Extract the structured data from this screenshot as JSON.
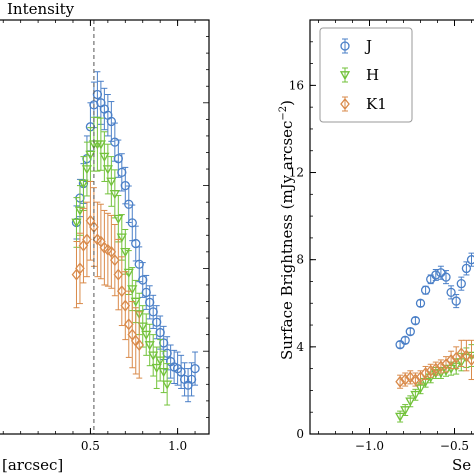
{
  "chart_data": [
    {
      "type": "scatter",
      "panel": "left",
      "ylabel": "Intensity",
      "xlabel": "[arcsec]",
      "xlim": [
        -0.03,
        1.18
      ],
      "ylim": [
        0,
        1
      ],
      "x_ticks": [
        {
          "v": 0.5,
          "label": "0.5"
        },
        {
          "v": 1.0,
          "label": "1.0"
        }
      ],
      "vline_x": 0.52,
      "colors": {
        "J": "#4a7fc7",
        "H": "#72c23a",
        "K1": "#d98a4a"
      },
      "series": [
        {
          "name": "J",
          "points": [
            [
              0.42,
              0.511,
              0.04
            ],
            [
              0.44,
              0.57,
              0.045
            ],
            [
              0.46,
              0.605,
              0.048
            ],
            [
              0.48,
              0.665,
              0.055
            ],
            [
              0.5,
              0.742,
              0.058
            ],
            [
              0.52,
              0.795,
              0.055
            ],
            [
              0.54,
              0.82,
              0.055
            ],
            [
              0.56,
              0.8,
              0.052
            ],
            [
              0.58,
              0.785,
              0.05
            ],
            [
              0.6,
              0.77,
              0.05
            ],
            [
              0.62,
              0.755,
              0.048
            ],
            [
              0.64,
              0.705,
              0.046
            ],
            [
              0.66,
              0.665,
              0.045
            ],
            [
              0.68,
              0.632,
              0.045
            ],
            [
              0.7,
              0.6,
              0.044
            ],
            [
              0.72,
              0.555,
              0.044
            ],
            [
              0.74,
              0.51,
              0.043
            ],
            [
              0.76,
              0.46,
              0.042
            ],
            [
              0.78,
              0.41,
              0.042
            ],
            [
              0.8,
              0.372,
              0.042
            ],
            [
              0.82,
              0.342,
              0.041
            ],
            [
              0.84,
              0.318,
              0.04
            ],
            [
              0.86,
              0.295,
              0.04
            ],
            [
              0.88,
              0.27,
              0.04
            ],
            [
              0.9,
              0.245,
              0.04
            ],
            [
              0.92,
              0.22,
              0.04
            ],
            [
              0.94,
              0.195,
              0.04
            ],
            [
              0.96,
              0.175,
              0.04
            ],
            [
              0.98,
              0.162,
              0.04
            ],
            [
              1.0,
              0.158,
              0.04
            ],
            [
              1.02,
              0.15,
              0.04
            ],
            [
              1.04,
              0.132,
              0.04
            ],
            [
              1.06,
              0.118,
              0.04
            ],
            [
              1.08,
              0.132,
              0.04
            ],
            [
              1.1,
              0.158,
              0.04
            ]
          ]
        },
        {
          "name": "H",
          "points": [
            [
              0.42,
              0.511,
              0.06
            ],
            [
              0.44,
              0.54,
              0.06
            ],
            [
              0.46,
              0.605,
              0.065
            ],
            [
              0.48,
              0.64,
              0.065
            ],
            [
              0.5,
              0.675,
              0.065
            ],
            [
              0.52,
              0.7,
              0.065
            ],
            [
              0.54,
              0.7,
              0.065
            ],
            [
              0.56,
              0.7,
              0.063
            ],
            [
              0.58,
              0.67,
              0.06
            ],
            [
              0.6,
              0.64,
              0.06
            ],
            [
              0.62,
              0.61,
              0.06
            ],
            [
              0.64,
              0.58,
              0.058
            ],
            [
              0.66,
              0.52,
              0.056
            ],
            [
              0.68,
              0.475,
              0.055
            ],
            [
              0.7,
              0.44,
              0.054
            ],
            [
              0.72,
              0.39,
              0.053
            ],
            [
              0.74,
              0.35,
              0.052
            ],
            [
              0.76,
              0.32,
              0.051
            ],
            [
              0.78,
              0.29,
              0.05
            ],
            [
              0.8,
              0.26,
              0.05
            ],
            [
              0.82,
              0.24,
              0.05
            ],
            [
              0.84,
              0.215,
              0.05
            ],
            [
              0.86,
              0.19,
              0.05
            ],
            [
              0.88,
              0.16,
              0.05
            ],
            [
              0.9,
              0.178,
              0.05
            ],
            [
              0.92,
              0.15,
              0.05
            ],
            [
              0.94,
              0.12,
              0.05
            ]
          ]
        },
        {
          "name": "K1",
          "points": [
            [
              0.42,
              0.385,
              0.08
            ],
            [
              0.44,
              0.4,
              0.085
            ],
            [
              0.46,
              0.455,
              0.09
            ],
            [
              0.48,
              0.47,
              0.09
            ],
            [
              0.5,
              0.515,
              0.095
            ],
            [
              0.52,
              0.5,
              0.095
            ],
            [
              0.54,
              0.47,
              0.09
            ],
            [
              0.56,
              0.465,
              0.09
            ],
            [
              0.58,
              0.45,
              0.09
            ],
            [
              0.6,
              0.445,
              0.088
            ],
            [
              0.62,
              0.44,
              0.088
            ],
            [
              0.64,
              0.42,
              0.086
            ],
            [
              0.66,
              0.385,
              0.085
            ],
            [
              0.68,
              0.345,
              0.083
            ],
            [
              0.7,
              0.31,
              0.082
            ],
            [
              0.72,
              0.265,
              0.08
            ],
            [
              0.74,
              0.24,
              0.08
            ],
            [
              0.76,
              0.225,
              0.08
            ],
            [
              0.78,
              0.215,
              0.08
            ]
          ]
        }
      ]
    },
    {
      "type": "scatter",
      "panel": "right",
      "ylabel": "Surface Brightness (mJy arcsec$^{-2}$)",
      "ylabel_main": "Surface Brightness (mJy arcsec",
      "ylabel_sup": "−2",
      "ylabel_close": ")",
      "xlabel": "Se",
      "xlim": [
        -1.35,
        -0.35
      ],
      "ylim": [
        0,
        19
      ],
      "x_ticks": [
        {
          "v": -1.0,
          "label": "−1.0"
        },
        {
          "v": -0.5,
          "label": "−0.5"
        }
      ],
      "y_ticks": [
        {
          "v": 0,
          "label": "0"
        },
        {
          "v": 4,
          "label": "4"
        },
        {
          "v": 8,
          "label": "8"
        },
        {
          "v": 12,
          "label": "12"
        },
        {
          "v": 16,
          "label": "16"
        }
      ],
      "legend": [
        {
          "name": "J",
          "marker": "circle",
          "color": "#4a7fc7"
        },
        {
          "name": "H",
          "marker": "triangle",
          "color": "#72c23a"
        },
        {
          "name": "K1",
          "marker": "diamond",
          "color": "#d98a4a"
        }
      ],
      "series": [
        {
          "name": "J",
          "points": [
            [
              -0.82,
              4.1,
              0.15
            ],
            [
              -0.79,
              4.3,
              0.15
            ],
            [
              -0.76,
              4.7,
              0.15
            ],
            [
              -0.73,
              5.2,
              0.15
            ],
            [
              -0.7,
              6.0,
              0.15
            ],
            [
              -0.67,
              6.6,
              0.18
            ],
            [
              -0.64,
              7.1,
              0.2
            ],
            [
              -0.61,
              7.3,
              0.25
            ],
            [
              -0.58,
              7.4,
              0.3
            ],
            [
              -0.55,
              7.2,
              0.3
            ],
            [
              -0.52,
              6.5,
              0.3
            ],
            [
              -0.49,
              6.1,
              0.3
            ],
            [
              -0.46,
              6.9,
              0.3
            ],
            [
              -0.43,
              7.6,
              0.3
            ],
            [
              -0.4,
              8.0,
              0.3
            ]
          ]
        },
        {
          "name": "H",
          "points": [
            [
              -0.82,
              0.8,
              0.25
            ],
            [
              -0.79,
              1.1,
              0.25
            ],
            [
              -0.76,
              1.5,
              0.25
            ],
            [
              -0.73,
              1.8,
              0.25
            ],
            [
              -0.7,
              2.1,
              0.25
            ],
            [
              -0.67,
              2.4,
              0.25
            ],
            [
              -0.64,
              2.6,
              0.25
            ],
            [
              -0.61,
              2.8,
              0.25
            ],
            [
              -0.58,
              2.8,
              0.25
            ],
            [
              -0.55,
              2.9,
              0.25
            ],
            [
              -0.52,
              3.0,
              0.3
            ],
            [
              -0.49,
              3.1,
              0.35
            ],
            [
              -0.46,
              3.3,
              0.4
            ],
            [
              -0.43,
              3.5,
              0.45
            ],
            [
              -0.4,
              3.6,
              0.5
            ]
          ]
        },
        {
          "name": "K1",
          "points": [
            [
              -0.82,
              2.4,
              0.3
            ],
            [
              -0.79,
              2.5,
              0.3
            ],
            [
              -0.76,
              2.6,
              0.3
            ],
            [
              -0.73,
              2.5,
              0.3
            ],
            [
              -0.7,
              2.6,
              0.3
            ],
            [
              -0.67,
              2.8,
              0.3
            ],
            [
              -0.64,
              2.9,
              0.3
            ],
            [
              -0.61,
              3.0,
              0.3
            ],
            [
              -0.58,
              3.1,
              0.3
            ],
            [
              -0.55,
              3.2,
              0.35
            ],
            [
              -0.52,
              3.4,
              0.4
            ],
            [
              -0.49,
              3.5,
              0.5
            ],
            [
              -0.46,
              3.7,
              0.6
            ],
            [
              -0.43,
              3.6,
              0.7
            ],
            [
              -0.4,
              3.4,
              0.9
            ]
          ]
        }
      ]
    }
  ]
}
